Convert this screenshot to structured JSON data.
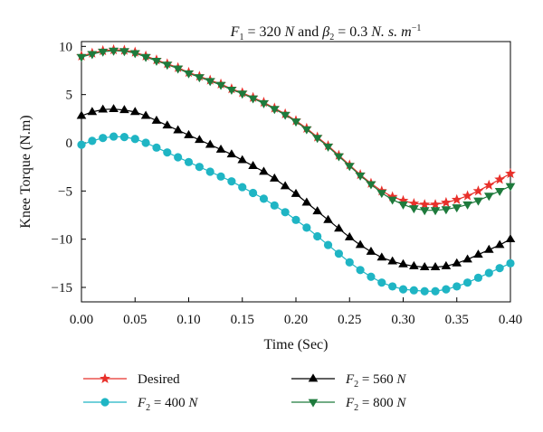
{
  "chart_data": {
    "type": "line",
    "title": {
      "parts": [
        {
          "text": "F",
          "style": "italic"
        },
        {
          "text": "1",
          "style": "sub"
        },
        {
          "text": " = 320 ",
          "style": "normal"
        },
        {
          "text": "N",
          "style": "italic"
        },
        {
          "text": " and ",
          "style": "normal"
        },
        {
          "text": "β",
          "style": "italic"
        },
        {
          "text": "2",
          "style": "sub"
        },
        {
          "text": " = 0.3 ",
          "style": "normal"
        },
        {
          "text": "N. s. m",
          "style": "italic"
        },
        {
          "text": "−1",
          "style": "sup"
        }
      ]
    },
    "xlabel": "Time (Sec)",
    "ylabel": "Knee Torque (N.m)",
    "xlim": [
      0,
      0.4
    ],
    "ylim": [
      -16.5,
      10.5
    ],
    "xticks": [
      "0.00",
      "0.05",
      "0.10",
      "0.15",
      "0.20",
      "0.25",
      "0.30",
      "0.35",
      "0.40"
    ],
    "xtick_values": [
      0,
      0.05,
      0.1,
      0.15,
      0.2,
      0.25,
      0.3,
      0.35,
      0.4
    ],
    "yticks": [
      "10",
      "5",
      "0",
      "−5",
      "−10",
      "−15"
    ],
    "ytick_values": [
      10,
      5,
      0,
      -5,
      -10,
      -15
    ],
    "grid": false,
    "legend_position": "bottom",
    "series": [
      {
        "name": "Desired",
        "name_parts": [
          {
            "text": "Desired",
            "style": "normal"
          }
        ],
        "color": "#e8302a",
        "marker": "star",
        "x": [
          0,
          0.01,
          0.02,
          0.03,
          0.04,
          0.05,
          0.06,
          0.07,
          0.08,
          0.09,
          0.1,
          0.11,
          0.12,
          0.13,
          0.14,
          0.15,
          0.16,
          0.17,
          0.18,
          0.19,
          0.2,
          0.21,
          0.22,
          0.23,
          0.24,
          0.25,
          0.26,
          0.27,
          0.28,
          0.29,
          0.3,
          0.31,
          0.32,
          0.33,
          0.34,
          0.35,
          0.36,
          0.37,
          0.38,
          0.39,
          0.4
        ],
        "y": [
          9.0,
          9.3,
          9.55,
          9.65,
          9.6,
          9.4,
          9.0,
          8.6,
          8.2,
          7.8,
          7.3,
          6.9,
          6.5,
          6.1,
          5.6,
          5.2,
          4.7,
          4.2,
          3.6,
          3.0,
          2.3,
          1.5,
          0.6,
          -0.3,
          -1.3,
          -2.3,
          -3.3,
          -4.2,
          -5.0,
          -5.6,
          -6.0,
          -6.3,
          -6.4,
          -6.4,
          -6.2,
          -5.9,
          -5.5,
          -5.0,
          -4.4,
          -3.8,
          -3.2
        ]
      },
      {
        "name": "F2 = 560 N",
        "name_parts": [
          {
            "text": "F",
            "style": "italic"
          },
          {
            "text": "2",
            "style": "sub"
          },
          {
            "text": " = 560 ",
            "style": "normal"
          },
          {
            "text": "N",
            "style": "italic"
          }
        ],
        "color": "#000000",
        "marker": "triangle-up",
        "x": [
          0,
          0.01,
          0.02,
          0.03,
          0.04,
          0.05,
          0.06,
          0.07,
          0.08,
          0.09,
          0.1,
          0.11,
          0.12,
          0.13,
          0.14,
          0.15,
          0.16,
          0.17,
          0.18,
          0.19,
          0.2,
          0.21,
          0.22,
          0.23,
          0.24,
          0.25,
          0.26,
          0.27,
          0.28,
          0.29,
          0.3,
          0.31,
          0.32,
          0.33,
          0.34,
          0.35,
          0.36,
          0.37,
          0.38,
          0.39,
          0.4
        ],
        "y": [
          2.8,
          3.2,
          3.45,
          3.5,
          3.4,
          3.2,
          2.8,
          2.3,
          1.8,
          1.3,
          0.8,
          0.3,
          -0.2,
          -0.7,
          -1.2,
          -1.8,
          -2.4,
          -3.0,
          -3.7,
          -4.5,
          -5.3,
          -6.2,
          -7.1,
          -8.0,
          -8.9,
          -9.8,
          -10.6,
          -11.3,
          -11.9,
          -12.3,
          -12.6,
          -12.8,
          -12.9,
          -12.9,
          -12.8,
          -12.5,
          -12.1,
          -11.6,
          -11.1,
          -10.6,
          -10.0
        ]
      },
      {
        "name": "F2 = 400 N",
        "name_parts": [
          {
            "text": "F",
            "style": "italic"
          },
          {
            "text": "2",
            "style": "sub"
          },
          {
            "text": " = 400 ",
            "style": "normal"
          },
          {
            "text": "N",
            "style": "italic"
          }
        ],
        "color": "#1fb5c4",
        "marker": "circle",
        "x": [
          0,
          0.01,
          0.02,
          0.03,
          0.04,
          0.05,
          0.06,
          0.07,
          0.08,
          0.09,
          0.1,
          0.11,
          0.12,
          0.13,
          0.14,
          0.15,
          0.16,
          0.17,
          0.18,
          0.19,
          0.2,
          0.21,
          0.22,
          0.23,
          0.24,
          0.25,
          0.26,
          0.27,
          0.28,
          0.29,
          0.3,
          0.31,
          0.32,
          0.33,
          0.34,
          0.35,
          0.36,
          0.37,
          0.38,
          0.39,
          0.4
        ],
        "y": [
          -0.2,
          0.2,
          0.5,
          0.65,
          0.6,
          0.4,
          0.0,
          -0.5,
          -1.0,
          -1.5,
          -2.0,
          -2.5,
          -3.0,
          -3.5,
          -4.0,
          -4.6,
          -5.2,
          -5.8,
          -6.5,
          -7.2,
          -8.0,
          -8.8,
          -9.7,
          -10.6,
          -11.5,
          -12.4,
          -13.2,
          -13.9,
          -14.5,
          -14.9,
          -15.2,
          -15.3,
          -15.4,
          -15.4,
          -15.2,
          -14.9,
          -14.5,
          -14.0,
          -13.5,
          -13.0,
          -12.5
        ]
      },
      {
        "name": "F2 = 800 N",
        "name_parts": [
          {
            "text": "F",
            "style": "italic"
          },
          {
            "text": "2",
            "style": "sub"
          },
          {
            "text": " = 800 ",
            "style": "normal"
          },
          {
            "text": "N",
            "style": "italic"
          }
        ],
        "color": "#1e7a3c",
        "marker": "triangle-down",
        "x": [
          0,
          0.01,
          0.02,
          0.03,
          0.04,
          0.05,
          0.06,
          0.07,
          0.08,
          0.09,
          0.1,
          0.11,
          0.12,
          0.13,
          0.14,
          0.15,
          0.16,
          0.17,
          0.18,
          0.19,
          0.2,
          0.21,
          0.22,
          0.23,
          0.24,
          0.25,
          0.26,
          0.27,
          0.28,
          0.29,
          0.3,
          0.31,
          0.32,
          0.33,
          0.34,
          0.35,
          0.36,
          0.37,
          0.38,
          0.39,
          0.4
        ],
        "y": [
          8.9,
          9.2,
          9.45,
          9.55,
          9.5,
          9.3,
          8.9,
          8.5,
          8.1,
          7.7,
          7.2,
          6.8,
          6.4,
          6.0,
          5.5,
          5.1,
          4.6,
          4.1,
          3.5,
          2.9,
          2.2,
          1.4,
          0.5,
          -0.4,
          -1.4,
          -2.4,
          -3.4,
          -4.3,
          -5.2,
          -5.9,
          -6.4,
          -6.8,
          -7.0,
          -7.0,
          -6.9,
          -6.7,
          -6.4,
          -6.0,
          -5.5,
          -5.0,
          -4.5
        ]
      }
    ]
  }
}
